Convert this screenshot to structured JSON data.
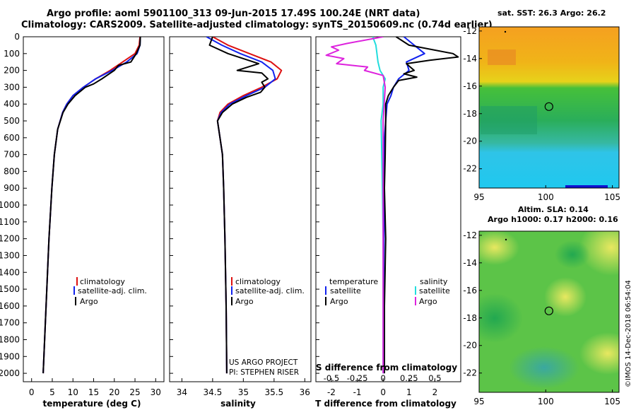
{
  "header": {
    "line1": "Argo profile: aoml 5901100_313 09-Jun-2015 17.49S 100.24E (NRT data)",
    "line2": "Climatology: CARS2009. Satellite-adjusted climatology: synTS_20150609.nc (0.74d earlier)"
  },
  "maps": {
    "sst_title": "sat. SST: 26.3 Argo: 26.2",
    "sla_title_line1": "Altim. SLA: 0.14",
    "sla_title_line2": "Argo h1000: 0.17 h2000: 0.16",
    "lon_ticks": [
      "95",
      "100",
      "105"
    ],
    "lat_ticks": [
      "-12",
      "-14",
      "-16",
      "-18",
      "-20",
      "-22"
    ],
    "float_position": {
      "lon": 100.24,
      "lat": -17.49
    }
  },
  "credit": "©IMOS 14-Dec-2018 06:54:04",
  "colors": {
    "climatology": "#dd1111",
    "satellite": "#1122ee",
    "argo": "#000000",
    "salinity_satellite": "#22dddd",
    "salinity_argo": "#dd22dd"
  },
  "chart_data": [
    {
      "type": "line",
      "name": "temperature",
      "xlabel": "temperature (deg C)",
      "ylabel": "",
      "xlim": [
        -2,
        32
      ],
      "ylim": [
        0,
        2050
      ],
      "xticks": [
        0,
        5,
        10,
        15,
        20,
        25,
        30
      ],
      "yticks": [
        0,
        100,
        200,
        300,
        400,
        500,
        600,
        700,
        800,
        900,
        1000,
        1100,
        1200,
        1300,
        1400,
        1500,
        1600,
        1700,
        1800,
        1900,
        2000
      ],
      "legend": [
        "climatology",
        "satellite-adj. clim.",
        "Argo"
      ],
      "series": [
        {
          "name": "climatology",
          "color": "#dd1111",
          "x": [
            26.2,
            26,
            25,
            22,
            19,
            15.5,
            12.5,
            10,
            8.5,
            7.5,
            6.3,
            5.5,
            4.9,
            4.2,
            3.5,
            2.8
          ],
          "y": [
            0,
            50,
            100,
            150,
            200,
            250,
            300,
            350,
            400,
            450,
            550,
            700,
            900,
            1200,
            1600,
            2000
          ]
        },
        {
          "name": "satellite-adj. clim.",
          "color": "#1122ee",
          "x": [
            26.3,
            26.2,
            25.5,
            23,
            19.5,
            15.5,
            12.5,
            10,
            8.5,
            7.5,
            6.3,
            5.5,
            4.9,
            4.2,
            3.5,
            2.8
          ],
          "y": [
            0,
            50,
            100,
            150,
            200,
            250,
            300,
            350,
            400,
            450,
            550,
            700,
            900,
            1200,
            1600,
            2000
          ]
        },
        {
          "name": "Argo",
          "color": "#000000",
          "x": [
            26.3,
            26.2,
            25.3,
            24,
            21,
            20,
            17,
            15,
            13,
            10.5,
            8.8,
            7.6,
            6.3,
            5.5,
            4.9,
            4.2,
            3.5,
            2.8
          ],
          "y": [
            0,
            50,
            100,
            150,
            170,
            200,
            250,
            280,
            300,
            350,
            400,
            450,
            550,
            700,
            900,
            1200,
            1600,
            2000
          ]
        }
      ]
    },
    {
      "type": "line",
      "name": "salinity",
      "xlabel": "salinity",
      "xlim": [
        33.8,
        36.1
      ],
      "ylim": [
        0,
        2050
      ],
      "xticks": [
        34,
        34.5,
        35,
        35.5,
        36
      ],
      "xtick_labels": [
        "34",
        "34.5",
        "35",
        "35.5",
        "36"
      ],
      "legend": [
        "climatology",
        "satellite-adj. clim.",
        "Argo"
      ],
      "annotation_line1": "US ARGO PROJECT",
      "annotation_line2": "PI: STEPHEN RISER",
      "series": [
        {
          "name": "climatology",
          "color": "#dd1111",
          "x": [
            34.5,
            34.75,
            35.1,
            35.45,
            35.62,
            35.55,
            35.3,
            35,
            34.75,
            34.62,
            34.58,
            34.62,
            34.66,
            34.68,
            34.7,
            34.72,
            34.73
          ],
          "y": [
            0,
            50,
            100,
            150,
            200,
            250,
            300,
            350,
            400,
            450,
            500,
            600,
            700,
            900,
            1200,
            1600,
            2000
          ]
        },
        {
          "name": "satellite-adj. clim.",
          "color": "#1122ee",
          "x": [
            34.4,
            34.65,
            34.95,
            35.3,
            35.48,
            35.52,
            35.35,
            35.05,
            34.78,
            34.64,
            34.58,
            34.62,
            34.66,
            34.68,
            34.7,
            34.72,
            34.73
          ],
          "y": [
            0,
            50,
            100,
            150,
            200,
            250,
            300,
            350,
            400,
            450,
            500,
            600,
            700,
            900,
            1200,
            1600,
            2000
          ]
        },
        {
          "name": "Argo",
          "color": "#000000",
          "x": [
            34.5,
            34.45,
            34.75,
            35.25,
            34.9,
            35.3,
            35.4,
            35.3,
            35.35,
            35.28,
            35.05,
            34.82,
            34.66,
            34.58,
            34.62,
            34.66,
            34.68,
            34.7,
            34.72,
            34.73
          ],
          "y": [
            0,
            50,
            100,
            160,
            200,
            215,
            250,
            270,
            300,
            330,
            360,
            400,
            450,
            500,
            600,
            700,
            900,
            1200,
            1600,
            2000
          ]
        }
      ]
    },
    {
      "type": "line",
      "name": "differences",
      "xlabel": "T difference from climatology",
      "top_label": "S difference from climatology",
      "xlim": [
        -2.6,
        3
      ],
      "ylim": [
        0,
        2050
      ],
      "xticks": [
        -2,
        -1,
        0,
        1,
        2
      ],
      "xtick_labels": [
        "-2",
        "-1",
        "0",
        "1",
        "2"
      ],
      "top_ticks": [
        -0.5,
        -0.25,
        0,
        0.25,
        0.5
      ],
      "top_tick_labels": [
        "-0.5",
        "-0.25",
        "0",
        "0.25",
        "0.5"
      ],
      "s_scale": 4,
      "legend_temperature_heading": "temperature",
      "legend_salinity_heading": "salinity",
      "legend_temperature": [
        "satellite",
        "Argo"
      ],
      "legend_salinity": [
        "satellite",
        "Argo"
      ],
      "series": [
        {
          "name": "T satellite",
          "color": "#1122ee",
          "x": [
            0.8,
            1.2,
            1.6,
            0.9,
            1.0,
            0.6,
            0.4,
            0.3,
            0.15,
            0.1,
            0.05,
            0.05,
            0.03,
            0.02,
            0.02
          ],
          "y": [
            0,
            50,
            100,
            150,
            200,
            250,
            300,
            350,
            400,
            500,
            600,
            800,
            1200,
            1600,
            2000
          ]
        },
        {
          "name": "T Argo",
          "color": "#000000",
          "x": [
            0.5,
            1.0,
            2.7,
            2.9,
            1.8,
            0.9,
            1.2,
            0.8,
            1.3,
            0.6,
            0.4,
            0.2,
            0.1,
            0.1,
            0.08,
            0.05,
            0.1,
            0.05,
            0.05
          ],
          "y": [
            0,
            50,
            100,
            120,
            140,
            160,
            200,
            220,
            240,
            260,
            300,
            350,
            400,
            500,
            700,
            900,
            1200,
            1600,
            2000
          ]
        },
        {
          "name": "S satellite",
          "color": "#22dddd",
          "x": [
            -0.1,
            -0.07,
            -0.06,
            -0.05,
            -0.03,
            0.02,
            0,
            0,
            -0.02,
            -0.01,
            0,
            0
          ],
          "y": [
            0,
            50,
            100,
            150,
            200,
            250,
            300,
            400,
            500,
            800,
            1200,
            2000
          ]
        },
        {
          "name": "S Argo",
          "color": "#dd22dd",
          "x": [
            0,
            -0.35,
            -0.5,
            -0.43,
            -0.55,
            -0.38,
            -0.45,
            -0.15,
            -0.18,
            0,
            0.02,
            0,
            0,
            0
          ],
          "y": [
            0,
            40,
            60,
            80,
            110,
            130,
            160,
            180,
            200,
            230,
            300,
            500,
            1000,
            2000
          ]
        }
      ]
    }
  ]
}
